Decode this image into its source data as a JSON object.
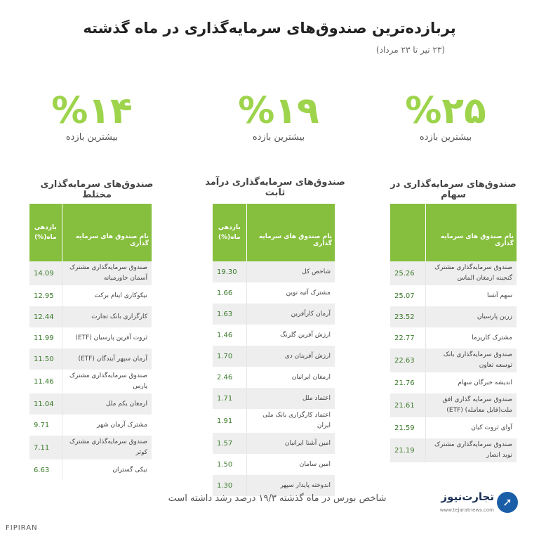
{
  "header": {
    "title": "پربازده‌ترین صندوق‌های سرمایه‌گذاری در ماه گذشته",
    "subtitle": "(۲۳ تیر تا ۲۳ مرداد)"
  },
  "stats": [
    {
      "value": "%۲۵",
      "label": "بیشترین بازده"
    },
    {
      "value": "%۱۹",
      "label": "بیشترین بازده"
    },
    {
      "value": "%۱۴",
      "label": "بیشترین بازده"
    }
  ],
  "colors": {
    "accent": "#9dd44c",
    "header_bg": "#86bf3e",
    "logo": "#1b5ea8"
  },
  "tables": {
    "stock": {
      "title": "صندوق‌های سرمایه‌گذاری در سهام",
      "col_name": "نام صندوق های سرمایه گذاری",
      "col_return": "",
      "rows": [
        {
          "name": "صندوق سرمایه‌گذاری مشترک گنجینه ارمغان الماس",
          "ret": "25.26"
        },
        {
          "name": "سهم آشنا",
          "ret": "25.07"
        },
        {
          "name": "زرین پارسیان",
          "ret": "23.52"
        },
        {
          "name": "مشترک کاریزما",
          "ret": "22.77"
        },
        {
          "name": "صندوق سرمایه‌گذاری بانک توسعه تعاون",
          "ret": "22.63"
        },
        {
          "name": "اندیشه خبرگان سهام",
          "ret": "21.76"
        },
        {
          "name": "صندوق سرمایه گذاری افق ملت(قابل معامله) (ETF)",
          "ret": "21.61"
        },
        {
          "name": "آوای ثروت کیان",
          "ret": "21.59"
        },
        {
          "name": "صندوق سرمایه‌گذاری مشترک نوید انصار",
          "ret": "21.19"
        }
      ]
    },
    "fixed": {
      "title": "صندوق‌های سرمایه‌گذاری درآمد ثابت",
      "col_name": "نام صندوق های سرمایه گذاری",
      "col_return_1": "بازدهی",
      "col_return_2": "ماه(%)",
      "rows": [
        {
          "name": "شاخص کل",
          "ret": "19.30"
        },
        {
          "name": "مشترک آتیه نوین",
          "ret": "1.66"
        },
        {
          "name": "آرمان کارآفرین",
          "ret": "1.63"
        },
        {
          "name": "ارزش آفرین گلرنگ",
          "ret": "1.46"
        },
        {
          "name": "ارزش آفرینان دی",
          "ret": "1.70"
        },
        {
          "name": "ارمغان ایرانیان",
          "ret": "2.46"
        },
        {
          "name": "اعتماد ملل",
          "ret": "1.71"
        },
        {
          "name": "اعتماد کارگزاری بانک ملی ایران",
          "ret": "1.91"
        },
        {
          "name": "امین آشنا ایرانیان",
          "ret": "1.57"
        },
        {
          "name": "امین سامان",
          "ret": "1.50"
        },
        {
          "name": "اندوخته پایدار سپهر",
          "ret": "1.30"
        }
      ]
    },
    "mixed": {
      "title": "صندوق‌های سرمایه‌گذاری مختلط",
      "col_name": "نام صندوق های سرمایه گذاری",
      "col_return_1": "بازدهی",
      "col_return_2": "ماه(%)",
      "rows": [
        {
          "name": "صندوق سرمایه‌گذاری مشترک آسمان خاورمیانه",
          "ret": "14.09"
        },
        {
          "name": "نیکوکاری ایتام برکت",
          "ret": "12.95"
        },
        {
          "name": "کارگزاری بانک تجارت",
          "ret": "12.44"
        },
        {
          "name": "ثروت آفرین پارسیان (ETF)",
          "ret": "11.99"
        },
        {
          "name": "آرمان سپهر آیندگان (ETF)",
          "ret": "11.50"
        },
        {
          "name": "صندوق سرمایه‌گذاری مشترک پارس",
          "ret": "11.46"
        },
        {
          "name": "ارمغان یکم ملل",
          "ret": "11.04"
        },
        {
          "name": "مشترک آرمان شهر",
          "ret": "9.71"
        },
        {
          "name": "صندوق سرمایه‌گذاری مشترک کوثر",
          "ret": "7.11"
        },
        {
          "name": "نیکی گستران",
          "ret": "6.63"
        }
      ]
    }
  },
  "footer": {
    "note": "شاخص بورس در ماه گذشته ۱۹/۳ درصد رشد داشته است",
    "logo_name": "تجارت‌نیوز",
    "logo_url": "www.tejaratnews.com",
    "source": "FIPIRAN"
  }
}
